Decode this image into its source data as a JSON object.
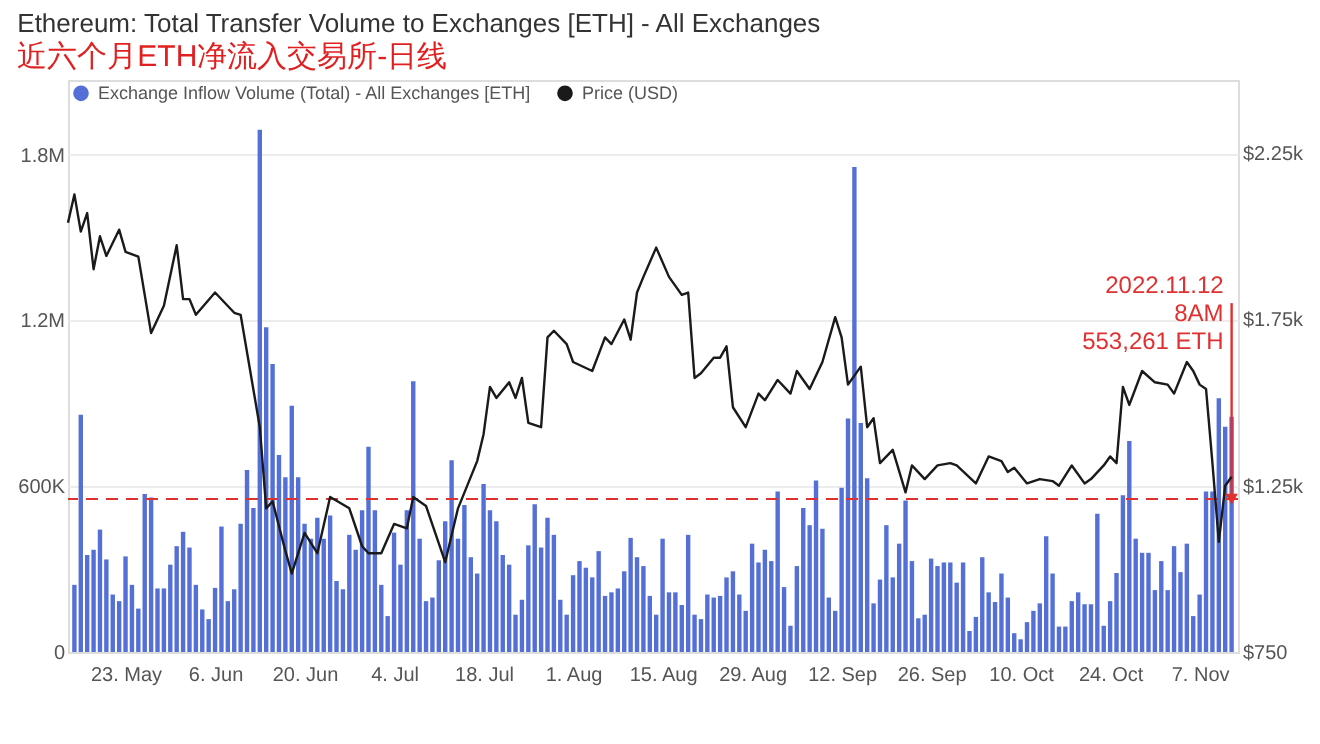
{
  "chart_data": {
    "type": "bar",
    "title": "Ethereum: Total Transfer Volume to Exchanges [ETH] - All Exchanges",
    "subtitle": "近六个月ETH净流入交易所-日线",
    "x": [
      "2022-05-15",
      "2022-05-16",
      "2022-05-17",
      "2022-05-18",
      "2022-05-19",
      "2022-05-20",
      "2022-05-21",
      "2022-05-22",
      "2022-05-23",
      "2022-05-24",
      "2022-05-25",
      "2022-05-26",
      "2022-05-27",
      "2022-05-28",
      "2022-05-29",
      "2022-05-30",
      "2022-05-31",
      "2022-06-01",
      "2022-06-02",
      "2022-06-03",
      "2022-06-04",
      "2022-06-05",
      "2022-06-06",
      "2022-06-07",
      "2022-06-08",
      "2022-06-09",
      "2022-06-10",
      "2022-06-11",
      "2022-06-12",
      "2022-06-13",
      "2022-06-14",
      "2022-06-15",
      "2022-06-16",
      "2022-06-17",
      "2022-06-18",
      "2022-06-19",
      "2022-06-20",
      "2022-06-21",
      "2022-06-22",
      "2022-06-23",
      "2022-06-24",
      "2022-06-25",
      "2022-06-26",
      "2022-06-27",
      "2022-06-28",
      "2022-06-29",
      "2022-06-30",
      "2022-07-01",
      "2022-07-02",
      "2022-07-03",
      "2022-07-04",
      "2022-07-05",
      "2022-07-06",
      "2022-07-07",
      "2022-07-08",
      "2022-07-09",
      "2022-07-10",
      "2022-07-11",
      "2022-07-12",
      "2022-07-13",
      "2022-07-14",
      "2022-07-15",
      "2022-07-16",
      "2022-07-17",
      "2022-07-18",
      "2022-07-19",
      "2022-07-20",
      "2022-07-21",
      "2022-07-22",
      "2022-07-23",
      "2022-07-24",
      "2022-07-25",
      "2022-07-26",
      "2022-07-27",
      "2022-07-28",
      "2022-07-29",
      "2022-07-30",
      "2022-07-31",
      "2022-08-01",
      "2022-08-02",
      "2022-08-03",
      "2022-08-04",
      "2022-08-05",
      "2022-08-06",
      "2022-08-07",
      "2022-08-08",
      "2022-08-09",
      "2022-08-10",
      "2022-08-11",
      "2022-08-12",
      "2022-08-13",
      "2022-08-14",
      "2022-08-15",
      "2022-08-16",
      "2022-08-17",
      "2022-08-18",
      "2022-08-19",
      "2022-08-20",
      "2022-08-21",
      "2022-08-22",
      "2022-08-23",
      "2022-08-24",
      "2022-08-25",
      "2022-08-26",
      "2022-08-27",
      "2022-08-28",
      "2022-08-29",
      "2022-08-30",
      "2022-08-31",
      "2022-09-01",
      "2022-09-02",
      "2022-09-03",
      "2022-09-04",
      "2022-09-05",
      "2022-09-06",
      "2022-09-07",
      "2022-09-08",
      "2022-09-09",
      "2022-09-10",
      "2022-09-11",
      "2022-09-12",
      "2022-09-13",
      "2022-09-14",
      "2022-09-15",
      "2022-09-16",
      "2022-09-17",
      "2022-09-18",
      "2022-09-19",
      "2022-09-20",
      "2022-09-21",
      "2022-09-22",
      "2022-09-23",
      "2022-09-24",
      "2022-09-25",
      "2022-09-26",
      "2022-09-27",
      "2022-09-28",
      "2022-09-29",
      "2022-09-30",
      "2022-10-01",
      "2022-10-02",
      "2022-10-03",
      "2022-10-04",
      "2022-10-05",
      "2022-10-06",
      "2022-10-07",
      "2022-10-08",
      "2022-10-09",
      "2022-10-10",
      "2022-10-11",
      "2022-10-12",
      "2022-10-13",
      "2022-10-14",
      "2022-10-15",
      "2022-10-16",
      "2022-10-17",
      "2022-10-18",
      "2022-10-19",
      "2022-10-20",
      "2022-10-21",
      "2022-10-22",
      "2022-10-23",
      "2022-10-24",
      "2022-10-25",
      "2022-10-26",
      "2022-10-27",
      "2022-10-28",
      "2022-10-29",
      "2022-10-30",
      "2022-10-31",
      "2022-11-01",
      "2022-11-02",
      "2022-11-03",
      "2022-11-04",
      "2022-11-05",
      "2022-11-06",
      "2022-11-07",
      "2022-11-08",
      "2022-11-09",
      "2022-11-10",
      "2022-11-11",
      "2022-11-12"
    ],
    "series": [
      {
        "name": "Exchange Inflow Volume (Total) - All Exchanges [ETH]",
        "color": "#5470d6",
        "values": [
          243000,
          859000,
          351000,
          370000,
          443000,
          335000,
          208000,
          184000,
          346000,
          243000,
          157000,
          572000,
          559000,
          230000,
          230000,
          316000,
          383000,
          435000,
          378000,
          243000,
          154000,
          119000,
          232000,
          454000,
          184000,
          227000,
          464000,
          659000,
          521000,
          1890000,
          1175000,
          1042000,
          713000,
          632000,
          891000,
          632000,
          464000,
          410000,
          486000,
          410000,
          494000,
          257000,
          227000,
          424000,
          370000,
          513000,
          743000,
          513000,
          243000,
          130000,
          432000,
          316000,
          513000,
          980000,
          410000,
          184000,
          197000,
          332000,
          473000,
          694000,
          410000,
          532000,
          343000,
          284000,
          608000,
          513000,
          473000,
          351000,
          316000,
          135000,
          189000,
          386000,
          535000,
          378000,
          486000,
          424000,
          189000,
          135000,
          278000,
          329000,
          305000,
          270000,
          365000,
          203000,
          216000,
          230000,
          292000,
          413000,
          343000,
          311000,
          203000,
          135000,
          410000,
          216000,
          216000,
          170000,
          424000,
          135000,
          119000,
          208000,
          197000,
          203000,
          270000,
          292000,
          208000,
          149000,
          392000,
          324000,
          370000,
          329000,
          581000,
          235000,
          95000,
          311000,
          521000,
          459000,
          621000,
          446000,
          197000,
          149000,
          594000,
          845000,
          1755000,
          829000,
          629000,
          176000,
          262000,
          459000,
          270000,
          392000,
          548000,
          329000,
          122000,
          135000,
          338000,
          311000,
          324000,
          324000,
          251000,
          324000,
          76000,
          127000,
          343000,
          216000,
          181000,
          284000,
          197000,
          68000,
          46000,
          108000,
          149000,
          176000,
          419000,
          284000,
          92000,
          92000,
          184000,
          216000,
          173000,
          173000,
          500000,
          95000,
          184000,
          286000,
          567000,
          764000,
          410000,
          359000,
          359000,
          224000,
          329000,
          224000,
          383000,
          289000,
          392000,
          130000,
          208000,
          581000,
          581000,
          918000,
          815000,
          851000
        ]
      },
      {
        "name": "Price (USD)",
        "type": "line",
        "axis": "y2",
        "color": "#1a1a1a",
        "x": [
          "2022-05-14",
          "2022-05-15",
          "2022-05-16",
          "2022-05-17",
          "2022-05-18",
          "2022-05-19",
          "2022-05-20",
          "2022-05-22",
          "2022-05-23",
          "2022-05-25",
          "2022-05-27",
          "2022-05-29",
          "2022-05-31",
          "2022-06-01",
          "2022-06-02",
          "2022-06-03",
          "2022-06-06",
          "2022-06-09",
          "2022-06-10",
          "2022-06-13",
          "2022-06-14",
          "2022-06-15",
          "2022-06-17",
          "2022-06-18",
          "2022-06-20",
          "2022-06-22",
          "2022-06-24",
          "2022-06-27",
          "2022-06-29",
          "2022-06-30",
          "2022-07-02",
          "2022-07-04",
          "2022-07-06",
          "2022-07-07",
          "2022-07-09",
          "2022-07-12",
          "2022-07-14",
          "2022-07-17",
          "2022-07-18",
          "2022-07-19",
          "2022-07-20",
          "2022-07-22",
          "2022-07-23",
          "2022-07-24",
          "2022-07-25",
          "2022-07-27",
          "2022-07-28",
          "2022-07-29",
          "2022-07-31",
          "2022-08-01",
          "2022-08-04",
          "2022-08-06",
          "2022-08-07",
          "2022-08-09",
          "2022-08-10",
          "2022-08-11",
          "2022-08-12",
          "2022-08-14",
          "2022-08-16",
          "2022-08-18",
          "2022-08-19",
          "2022-08-20",
          "2022-08-21",
          "2022-08-23",
          "2022-08-24",
          "2022-08-25",
          "2022-08-26",
          "2022-08-28",
          "2022-08-30",
          "2022-08-31",
          "2022-09-02",
          "2022-09-04",
          "2022-09-05",
          "2022-09-07",
          "2022-09-09",
          "2022-09-11",
          "2022-09-12",
          "2022-09-13",
          "2022-09-15",
          "2022-09-16",
          "2022-09-17",
          "2022-09-18",
          "2022-09-20",
          "2022-09-22",
          "2022-09-23",
          "2022-09-25",
          "2022-09-27",
          "2022-09-29",
          "2022-09-30",
          "2022-10-03",
          "2022-10-05",
          "2022-10-07",
          "2022-10-08",
          "2022-10-09",
          "2022-10-11",
          "2022-10-13",
          "2022-10-15",
          "2022-10-16",
          "2022-10-18",
          "2022-10-20",
          "2022-10-21",
          "2022-10-23",
          "2022-10-24",
          "2022-10-25",
          "2022-10-26",
          "2022-10-27",
          "2022-10-29",
          "2022-10-31",
          "2022-11-02",
          "2022-11-03",
          "2022-11-05",
          "2022-11-06",
          "2022-11-07",
          "2022-11-08",
          "2022-11-09",
          "2022-11-10",
          "2022-11-11",
          "2022-11-12"
        ],
        "values": [
          2041,
          2126,
          2014,
          2070,
          1901,
          2000,
          1941,
          2020,
          1953,
          1939,
          1709,
          1791,
          1973,
          1811,
          1811,
          1764,
          1831,
          1770,
          1764,
          1426,
          1182,
          1203,
          1054,
          986,
          1108,
          1047,
          1216,
          1182,
          1068,
          1047,
          1047,
          1135,
          1122,
          1216,
          1189,
          1020,
          1182,
          1324,
          1405,
          1547,
          1514,
          1561,
          1514,
          1574,
          1439,
          1426,
          1696,
          1716,
          1676,
          1622,
          1595,
          1696,
          1676,
          1750,
          1689,
          1831,
          1878,
          1966,
          1878,
          1824,
          1831,
          1574,
          1588,
          1635,
          1635,
          1669,
          1486,
          1426,
          1527,
          1507,
          1568,
          1527,
          1595,
          1541,
          1622,
          1757,
          1696,
          1554,
          1608,
          1426,
          1453,
          1318,
          1358,
          1230,
          1311,
          1270,
          1311,
          1318,
          1311,
          1257,
          1338,
          1324,
          1291,
          1304,
          1257,
          1270,
          1264,
          1250,
          1311,
          1257,
          1270,
          1311,
          1338,
          1318,
          1547,
          1493,
          1595,
          1561,
          1554,
          1527,
          1622,
          1595,
          1554,
          1541,
          1318,
          1081,
          1250,
          1277
        ]
      }
    ],
    "xlim": [
      "2022-05-14",
      "2022-11-13"
    ],
    "xticks": [
      {
        "value": "2022-05-23",
        "label": "23. May"
      },
      {
        "value": "2022-06-06",
        "label": "6. Jun"
      },
      {
        "value": "2022-06-20",
        "label": "20. Jun"
      },
      {
        "value": "2022-07-04",
        "label": "4. Jul"
      },
      {
        "value": "2022-07-18",
        "label": "18. Jul"
      },
      {
        "value": "2022-08-01",
        "label": "1. Aug"
      },
      {
        "value": "2022-08-15",
        "label": "15. Aug"
      },
      {
        "value": "2022-08-29",
        "label": "29. Aug"
      },
      {
        "value": "2022-09-12",
        "label": "12. Sep"
      },
      {
        "value": "2022-09-26",
        "label": "26. Sep"
      },
      {
        "value": "2022-10-10",
        "label": "10. Oct"
      },
      {
        "value": "2022-10-24",
        "label": "24. Oct"
      },
      {
        "value": "2022-11-07",
        "label": "7. Nov"
      }
    ],
    "ylim": [
      0,
      2070000
    ],
    "yticks": [
      0,
      {
        "value": 600000,
        "label": "600K"
      },
      {
        "value": 1200000,
        "label": "1.2M"
      },
      {
        "value": 1800000,
        "label": "1.8M"
      }
    ],
    "y2lim": [
      750,
      2470
    ],
    "y2ticks": [
      {
        "value": 750,
        "label": "$750"
      },
      {
        "value": 1250,
        "label": "$1.25k"
      },
      {
        "value": 1750,
        "label": "$1.75k"
      },
      {
        "value": 2250,
        "label": "$2.25k"
      }
    ],
    "ref_lines": [
      {
        "axis": "y",
        "value": 553261,
        "color": "#e03030",
        "line_style": "dashed"
      }
    ],
    "annotations": [
      {
        "text": "2022.11.12\n8AM\n553,261 ETH",
        "x": "2022-11-12",
        "y": 553261
      }
    ],
    "grid": "y",
    "legend": "top left"
  }
}
